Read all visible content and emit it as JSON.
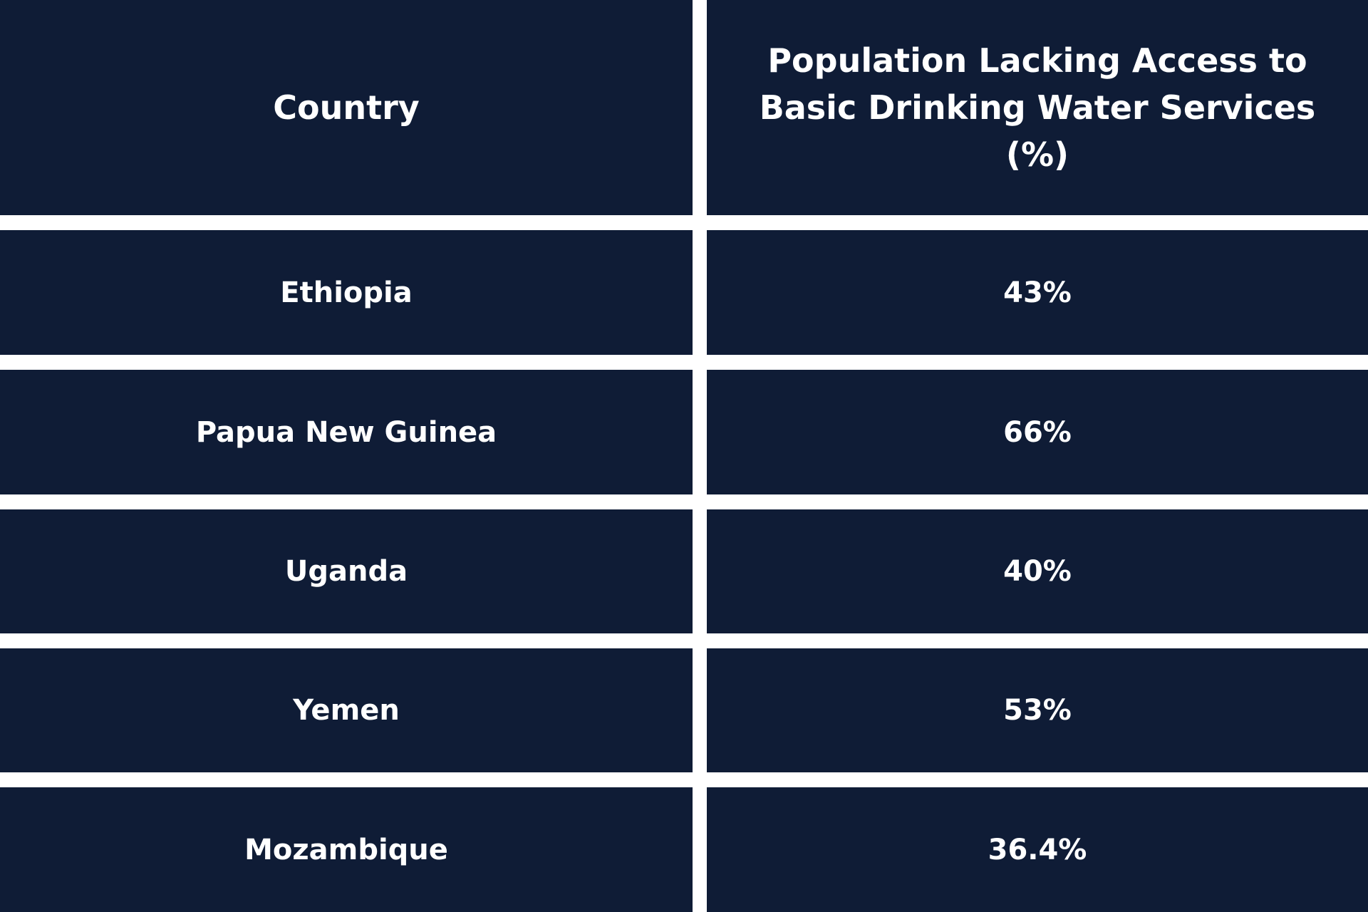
{
  "colors": {
    "cell_background": "#0f1c36",
    "grid_lines": "#ffffff",
    "text": "#ffffff"
  },
  "chart_data": {
    "type": "table",
    "columns": [
      "Country",
      "Population Lacking Access to Basic Drinking Water Services (%)"
    ],
    "rows": [
      {
        "country": "Ethiopia",
        "value": "43%"
      },
      {
        "country": "Papua New Guinea",
        "value": "66%"
      },
      {
        "country": "Uganda",
        "value": "40%"
      },
      {
        "country": "Yemen",
        "value": "53%"
      },
      {
        "country": "Mozambique",
        "value": "36.4%"
      }
    ]
  }
}
